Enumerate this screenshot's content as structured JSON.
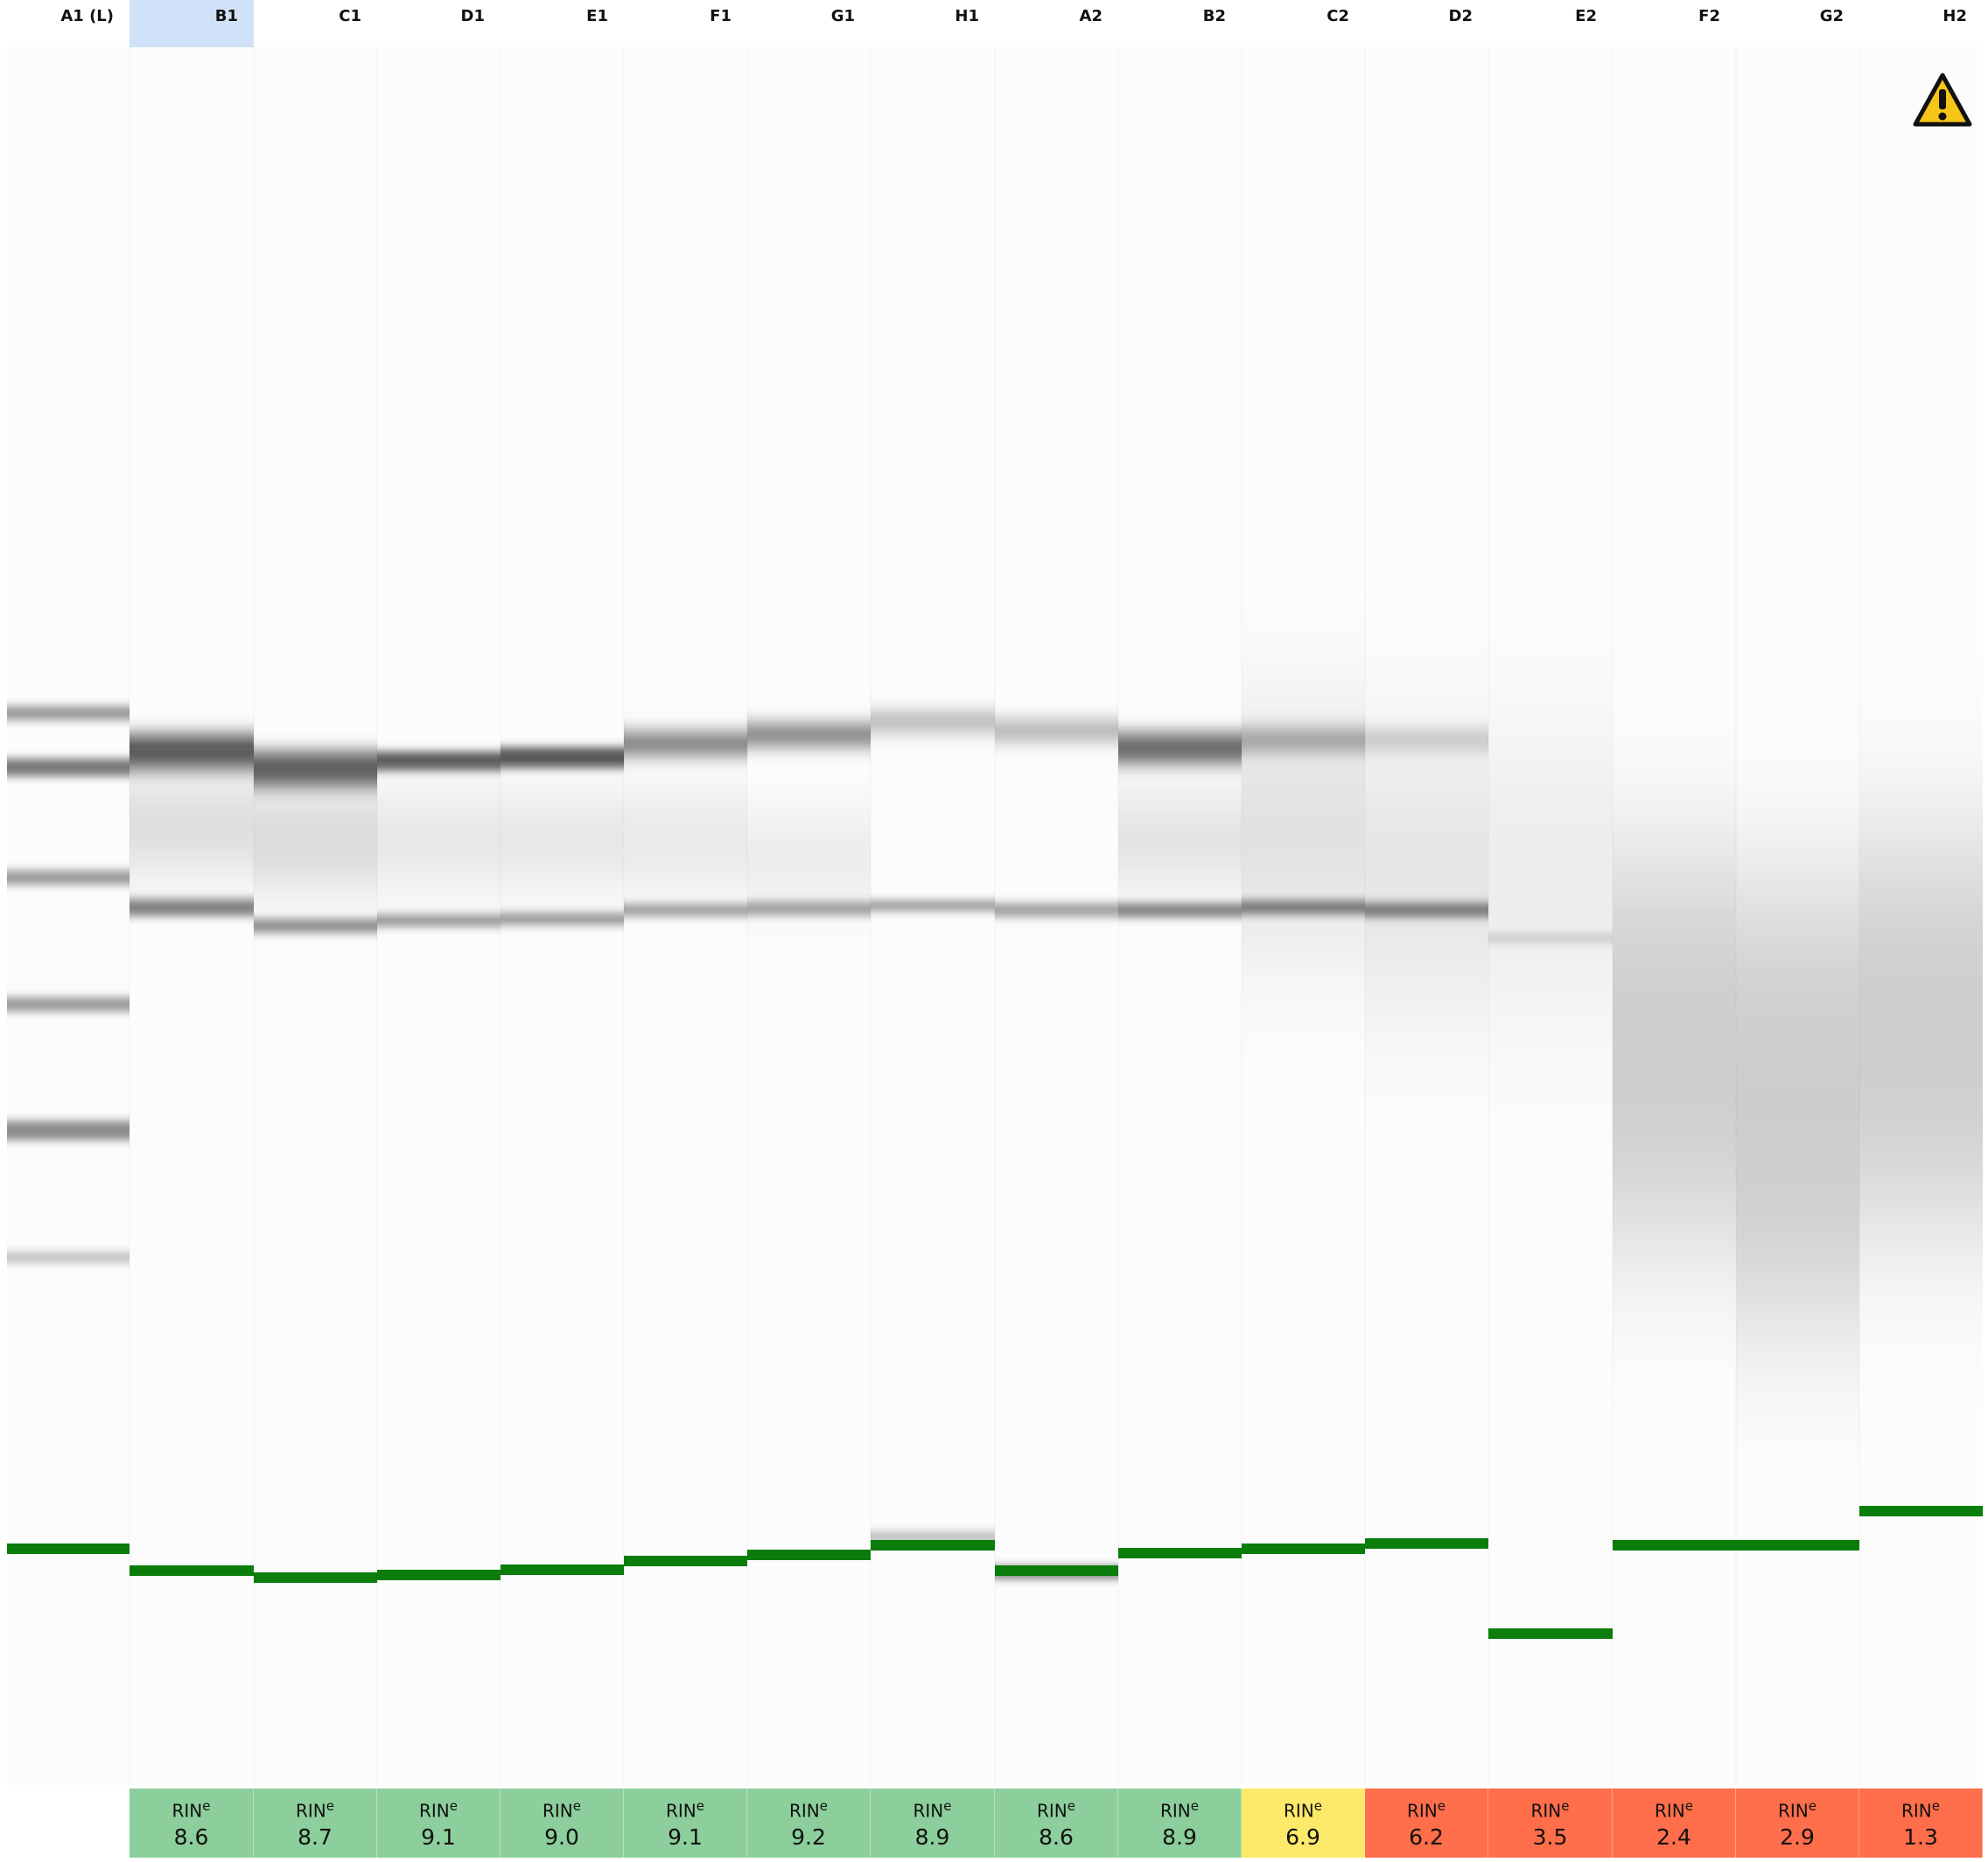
{
  "lanes": [
    {
      "well": "A1 (L)",
      "is_ladder": true,
      "selected": false,
      "rin": null,
      "rin_color": null
    },
    {
      "well": "B1",
      "is_ladder": false,
      "selected": true,
      "rin": "8.6",
      "rin_color": "#8ccf9c"
    },
    {
      "well": "C1",
      "is_ladder": false,
      "selected": false,
      "rin": "8.7",
      "rin_color": "#8ccf9c"
    },
    {
      "well": "D1",
      "is_ladder": false,
      "selected": false,
      "rin": "9.1",
      "rin_color": "#8ccf9c"
    },
    {
      "well": "E1",
      "is_ladder": false,
      "selected": false,
      "rin": "9.0",
      "rin_color": "#8ccf9c"
    },
    {
      "well": "F1",
      "is_ladder": false,
      "selected": false,
      "rin": "9.1",
      "rin_color": "#8ccf9c"
    },
    {
      "well": "G1",
      "is_ladder": false,
      "selected": false,
      "rin": "9.2",
      "rin_color": "#8ccf9c"
    },
    {
      "well": "H1",
      "is_ladder": false,
      "selected": false,
      "rin": "8.9",
      "rin_color": "#8ccf9c"
    },
    {
      "well": "A2",
      "is_ladder": false,
      "selected": false,
      "rin": "8.6",
      "rin_color": "#8ccf9c"
    },
    {
      "well": "B2",
      "is_ladder": false,
      "selected": false,
      "rin": "8.9",
      "rin_color": "#8ccf9c"
    },
    {
      "well": "C2",
      "is_ladder": false,
      "selected": false,
      "rin": "6.9",
      "rin_color": "#fde96a"
    },
    {
      "well": "D2",
      "is_ladder": false,
      "selected": false,
      "rin": "6.2",
      "rin_color": "#ff6e4a"
    },
    {
      "well": "E2",
      "is_ladder": false,
      "selected": false,
      "rin": "3.5",
      "rin_color": "#ff6e4a"
    },
    {
      "well": "F2",
      "is_ladder": false,
      "selected": false,
      "rin": "2.4",
      "rin_color": "#ff6e4a"
    },
    {
      "well": "G2",
      "is_ladder": false,
      "selected": false,
      "rin": "2.9",
      "rin_color": "#ff6e4a"
    },
    {
      "well": "H2",
      "is_ladder": false,
      "selected": false,
      "rin": "1.3",
      "rin_color": "#ff6e4a"
    }
  ],
  "rin_label": "RIN",
  "rin_superscript": "e",
  "marker_color": "#0a7d0a",
  "warning_icon": "warning-triangle-icon",
  "warning_color": "#f5c518"
}
